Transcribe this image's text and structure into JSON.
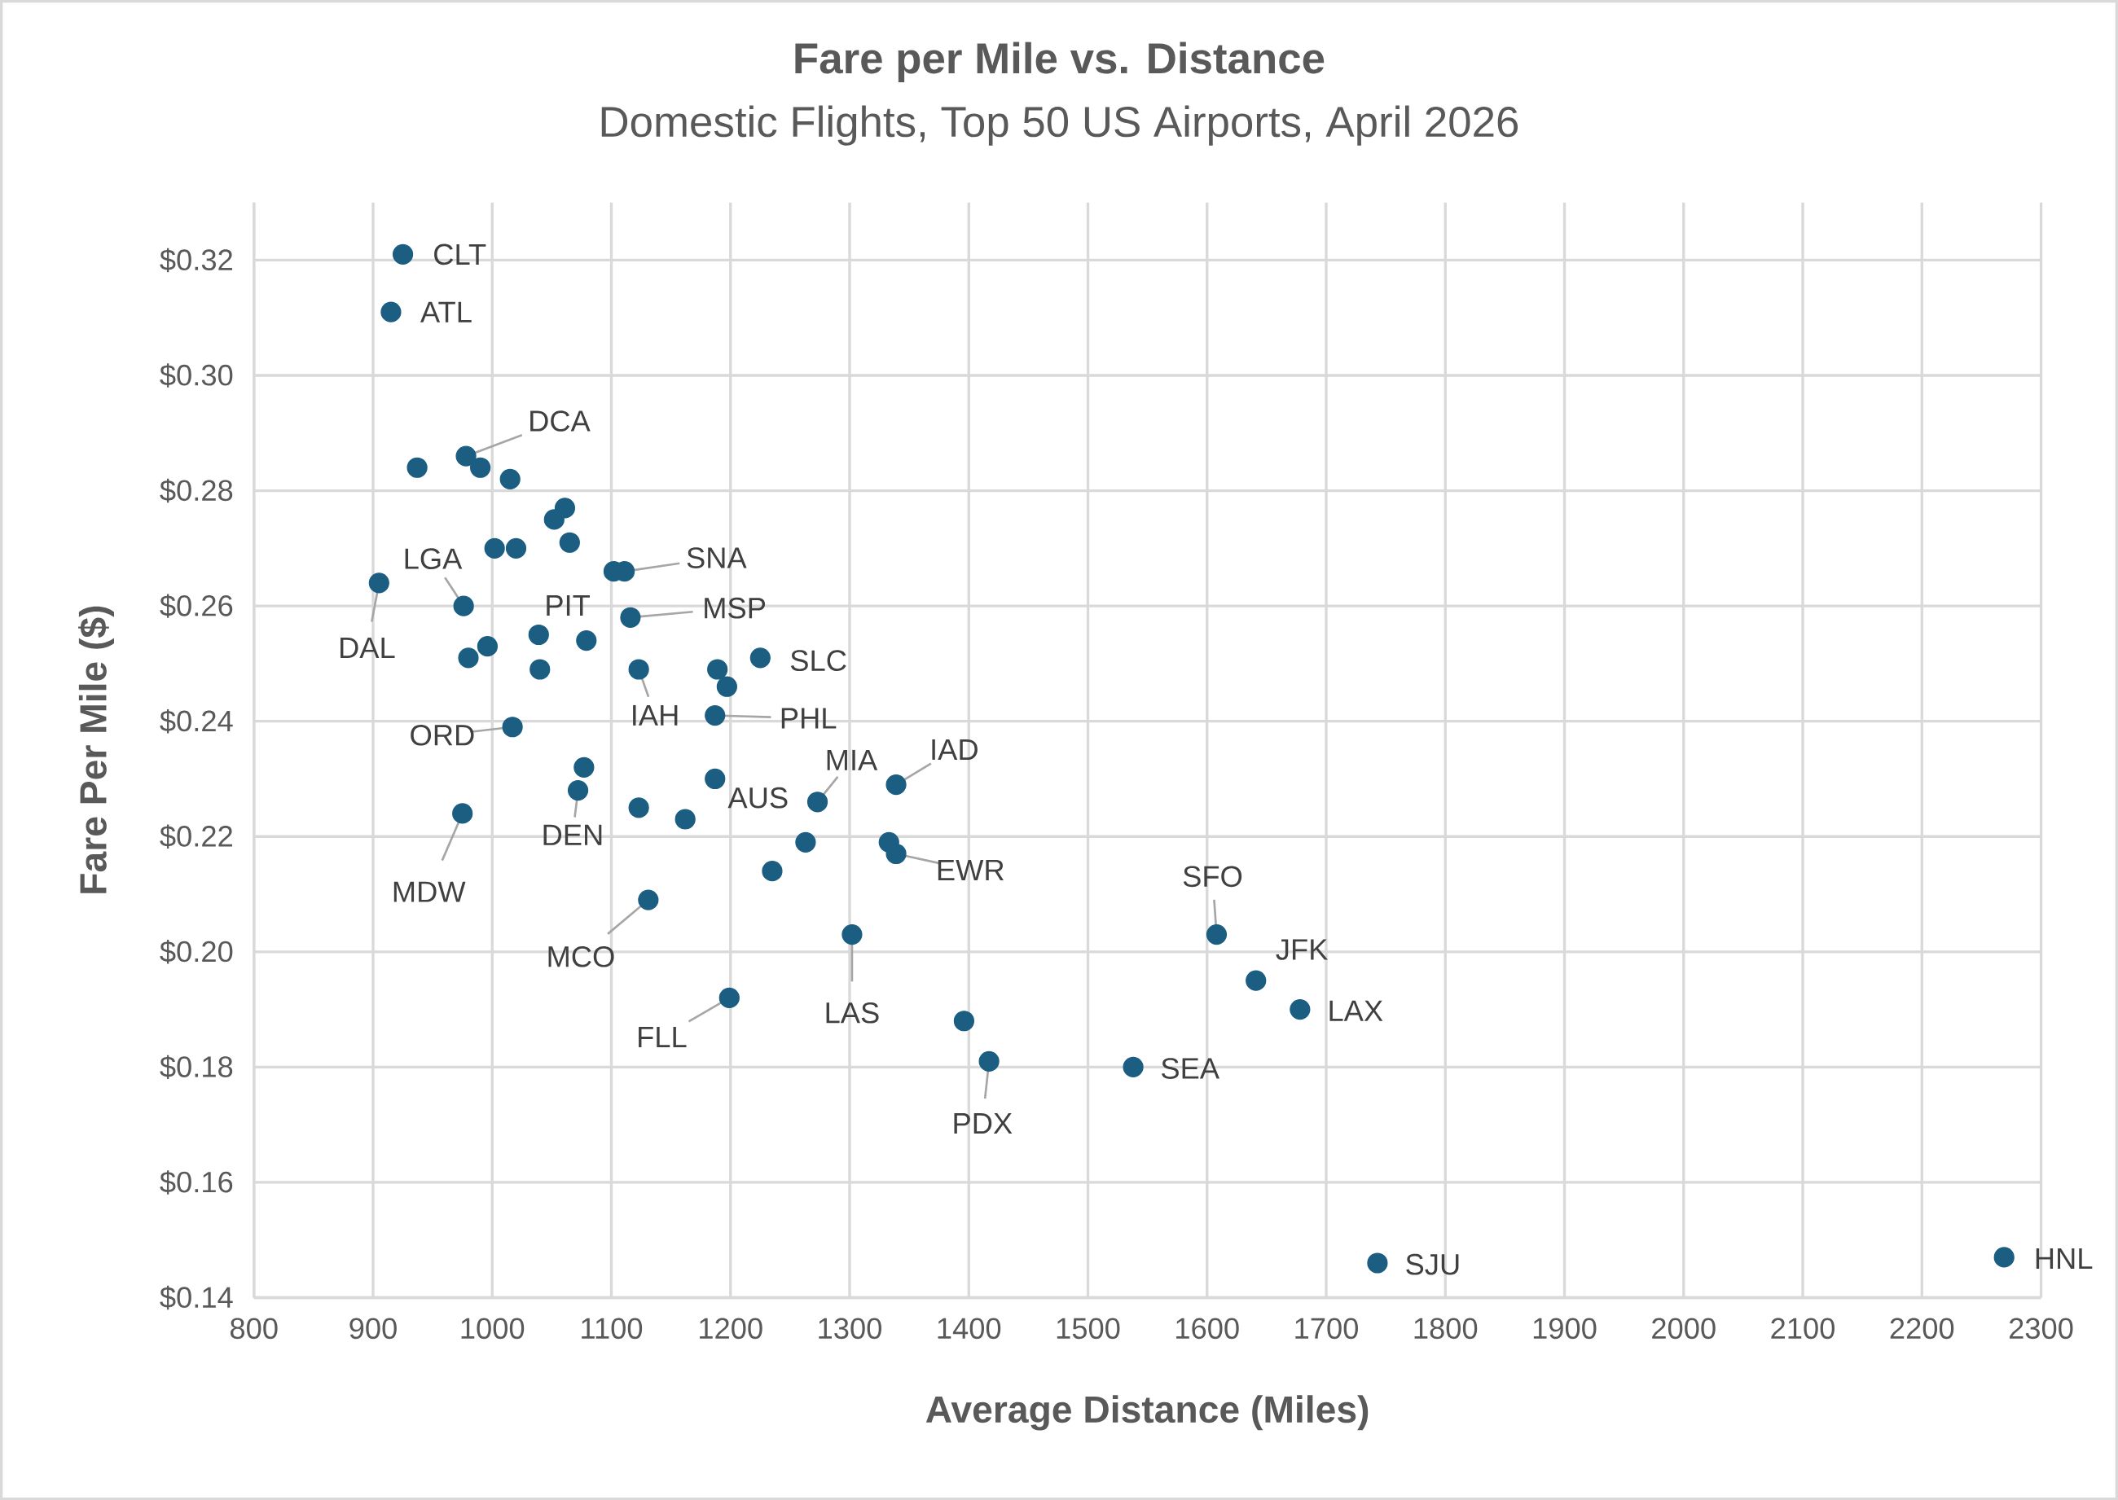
{
  "chart_data": {
    "type": "scatter",
    "title": "Fare per Mile vs. Distance",
    "subtitle": "Domestic Flights, Top 50 US Airports, April 2026",
    "xlabel": "Average Distance (Miles)",
    "ylabel": "Fare Per Mile ($)",
    "color": "#1b5e82",
    "marker": "circle",
    "grid": true,
    "x": [
      925,
      915,
      978,
      937,
      990,
      1015,
      1061,
      1052,
      1065,
      1002,
      1020,
      1102,
      1111,
      905,
      976,
      1116,
      1039,
      1079,
      996,
      980,
      1225,
      1040,
      1123,
      1189,
      1197,
      1187,
      1017,
      1077,
      1187,
      1072,
      1339,
      1273,
      1123,
      975,
      1162,
      1263,
      1333,
      1339,
      1235,
      1131,
      1302,
      1608,
      1641,
      1678,
      1199,
      1396,
      1417,
      1538,
      1743,
      2269
    ],
    "values": [
      0.321,
      0.311,
      0.286,
      0.284,
      0.284,
      0.282,
      0.277,
      0.275,
      0.271,
      0.27,
      0.27,
      0.266,
      0.266,
      0.264,
      0.26,
      0.258,
      0.255,
      0.254,
      0.253,
      0.251,
      0.251,
      0.249,
      0.249,
      0.249,
      0.246,
      0.241,
      0.239,
      0.232,
      0.23,
      0.228,
      0.229,
      0.226,
      0.225,
      0.224,
      0.223,
      0.219,
      0.219,
      0.217,
      0.214,
      0.209,
      0.203,
      0.203,
      0.195,
      0.19,
      0.192,
      0.188,
      0.181,
      0.18,
      0.146,
      0.147
    ],
    "xlim": [
      800,
      2300
    ],
    "xticks": [
      800,
      900,
      1000,
      1100,
      1200,
      1300,
      1400,
      1500,
      1600,
      1700,
      1800,
      1900,
      2000,
      2100,
      2200,
      2300
    ],
    "ylim": [
      0.14,
      0.33
    ],
    "yticks": [
      {
        "value": 0.14,
        "label": "$0.14"
      },
      {
        "value": 0.16,
        "label": "$0.16"
      },
      {
        "value": 0.18,
        "label": "$0.18"
      },
      {
        "value": 0.2,
        "label": "$0.20"
      },
      {
        "value": 0.22,
        "label": "$0.22"
      },
      {
        "value": 0.24,
        "label": "$0.24"
      },
      {
        "value": 0.26,
        "label": "$0.26"
      },
      {
        "value": 0.28,
        "label": "$0.28"
      },
      {
        "value": 0.3,
        "label": "$0.30"
      },
      {
        "value": 0.32,
        "label": "$0.32"
      }
    ],
    "annotations": [
      {
        "text": "CLT",
        "x": 925,
        "y": 0.321
      },
      {
        "text": "ATL",
        "x": 915,
        "y": 0.311
      },
      {
        "text": "DCA",
        "x": 978,
        "y": 0.286
      },
      {
        "text": "DAL",
        "x": 905,
        "y": 0.264
      },
      {
        "text": "LGA",
        "x": 976,
        "y": 0.26
      },
      {
        "text": "PIT",
        "x": 1079,
        "y": 0.254
      },
      {
        "text": "SNA",
        "x": 1111,
        "y": 0.266
      },
      {
        "text": "MSP",
        "x": 1116,
        "y": 0.258
      },
      {
        "text": "SLC",
        "x": 1225,
        "y": 0.251
      },
      {
        "text": "IAH",
        "x": 1123,
        "y": 0.249
      },
      {
        "text": "PHL",
        "x": 1187,
        "y": 0.241
      },
      {
        "text": "ORD",
        "x": 1017,
        "y": 0.239
      },
      {
        "text": "AUS",
        "x": 1187,
        "y": 0.23
      },
      {
        "text": "DEN",
        "x": 1072,
        "y": 0.228
      },
      {
        "text": "IAD",
        "x": 1339,
        "y": 0.229
      },
      {
        "text": "MIA",
        "x": 1273,
        "y": 0.226
      },
      {
        "text": "MDW",
        "x": 975,
        "y": 0.224
      },
      {
        "text": "EWR",
        "x": 1339,
        "y": 0.217
      },
      {
        "text": "MCO",
        "x": 1131,
        "y": 0.209
      },
      {
        "text": "LAS",
        "x": 1302,
        "y": 0.203
      },
      {
        "text": "SFO",
        "x": 1608,
        "y": 0.203
      },
      {
        "text": "JFK",
        "x": 1641,
        "y": 0.195
      },
      {
        "text": "LAX",
        "x": 1678,
        "y": 0.19
      },
      {
        "text": "FLL",
        "x": 1199,
        "y": 0.192
      },
      {
        "text": "PDX",
        "x": 1417,
        "y": 0.181
      },
      {
        "text": "SEA",
        "x": 1538,
        "y": 0.18
      },
      {
        "text": "SJU",
        "x": 1743,
        "y": 0.146
      },
      {
        "text": "HNL",
        "x": 2269,
        "y": 0.147
      }
    ]
  }
}
